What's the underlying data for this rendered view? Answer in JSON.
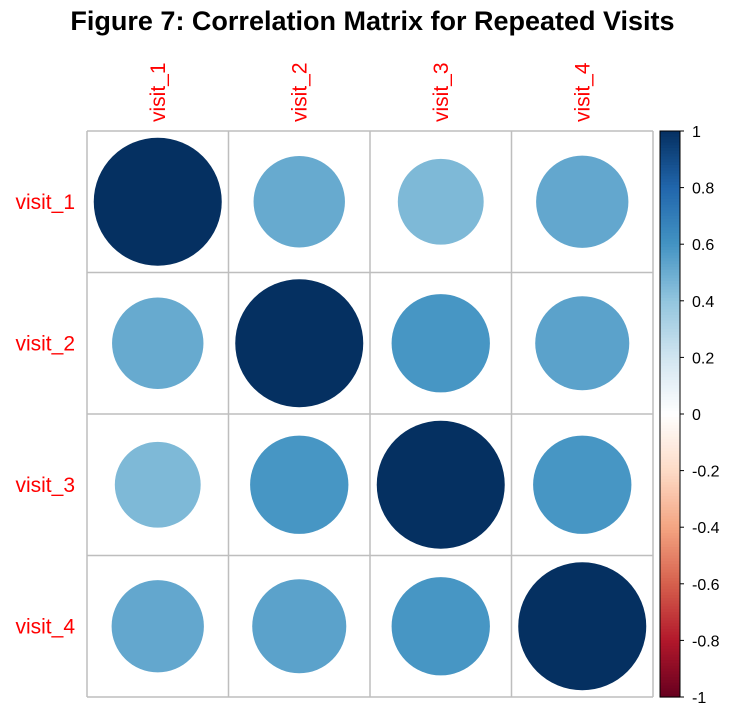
{
  "chart_data": {
    "type": "heatmap",
    "title": "Figure 7: Correlation Matrix for Repeated Visits",
    "variables": [
      "visit_1",
      "visit_2",
      "visit_3",
      "visit_4"
    ],
    "matrix": [
      [
        1.0,
        0.51,
        0.45,
        0.52
      ],
      [
        0.51,
        1.0,
        0.59,
        0.54
      ],
      [
        0.45,
        0.59,
        1.0,
        0.59
      ],
      [
        0.52,
        0.54,
        0.59,
        1.0
      ]
    ],
    "method": "circle",
    "label_color": "#FF0000",
    "grid_color": "#BEBEBE",
    "colorbar": {
      "range": [
        -1,
        1
      ],
      "ticks": [
        "1",
        "0.8",
        "0.6",
        "0.4",
        "0.2",
        "0",
        "-0.2",
        "-0.4",
        "-0.6",
        "-0.8",
        "-1"
      ],
      "placement": "right",
      "palette": [
        "#67001F",
        "#B2182B",
        "#D6604D",
        "#F4A582",
        "#FDDBC7",
        "#FFFFFF",
        "#D1E5F0",
        "#92C5DE",
        "#4393C3",
        "#2166AC",
        "#053061"
      ]
    }
  }
}
